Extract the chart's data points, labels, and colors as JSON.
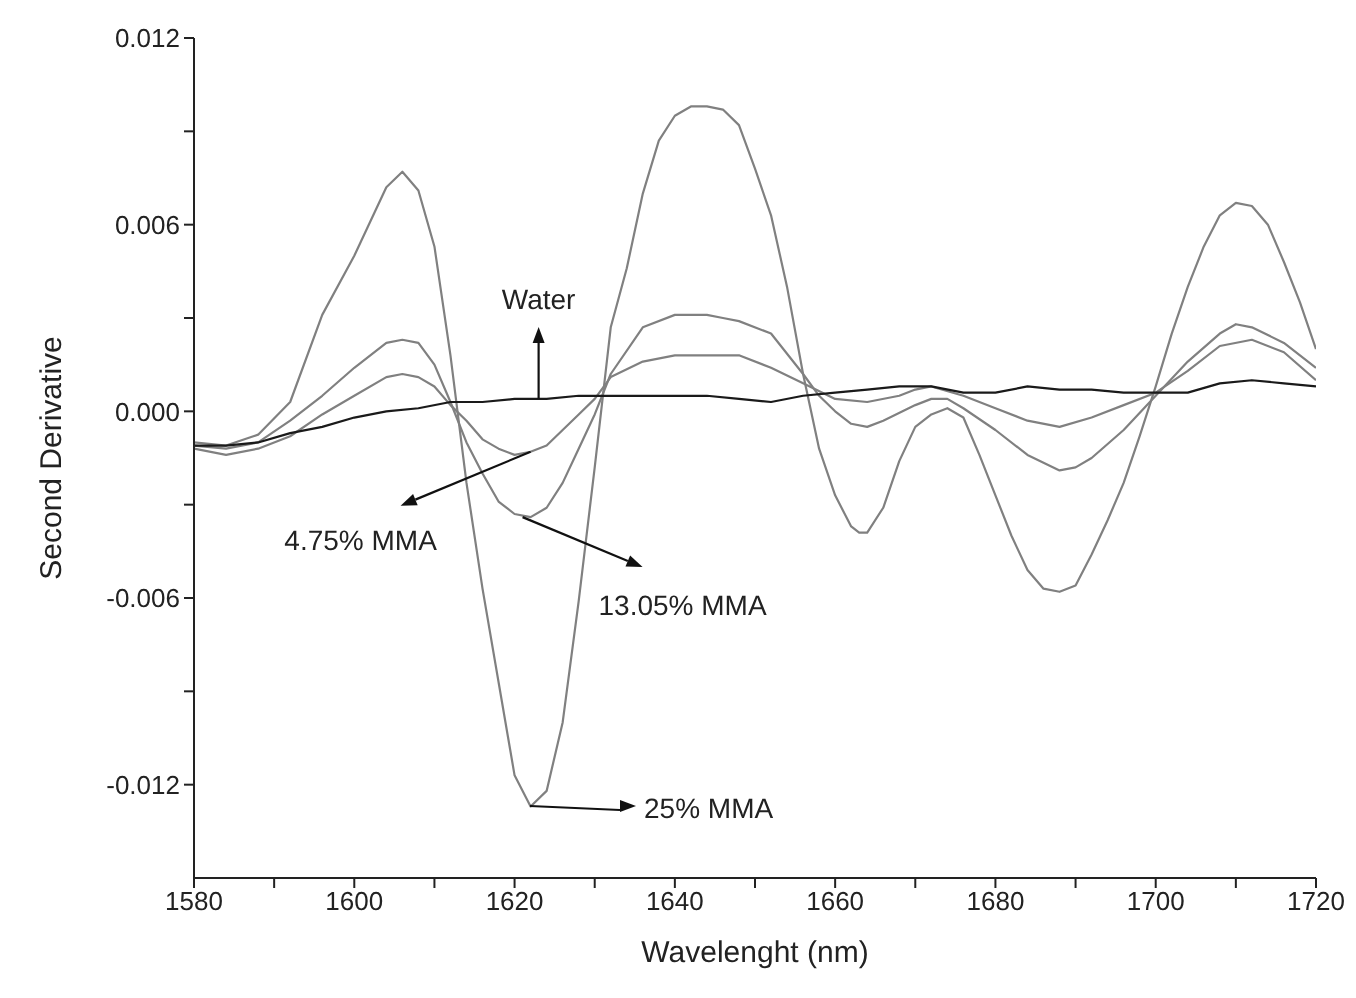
{
  "chart_data": {
    "type": "line",
    "xlabel": "Wavelenght (nm)",
    "ylabel": "Second Derivative",
    "xlim": [
      1580,
      1720
    ],
    "ylim": [
      -0.015,
      0.012
    ],
    "xticks": [
      1580,
      {
        "value": 1590,
        "label": null
      },
      1600,
      {
        "value": 1610,
        "label": null
      },
      1620,
      {
        "value": 1630,
        "label": null
      },
      1640,
      {
        "value": 1650,
        "label": null
      },
      1660,
      {
        "value": 1670,
        "label": null
      },
      1680,
      {
        "value": 1690,
        "label": null
      },
      1700,
      {
        "value": 1710,
        "label": null
      },
      1720
    ],
    "yticks": [
      -0.012,
      {
        "value": -0.009,
        "label": null
      },
      -0.006,
      {
        "value": -0.003,
        "label": null
      },
      {
        "value": 0,
        "label": "0.000"
      },
      {
        "value": 0.003,
        "label": null
      },
      0.006,
      {
        "value": 0.009,
        "label": null
      },
      0.012
    ],
    "marker": "none",
    "line_style": "solid",
    "series": [
      {
        "color": "#808080",
        "x": [
          1580,
          1584,
          1588,
          1592,
          1596,
          1600,
          1604,
          1606,
          1608,
          1610,
          1612,
          1614,
          1616,
          1618,
          1620,
          1622,
          1624,
          1626,
          1628,
          1630,
          1632,
          1634,
          1636,
          1638,
          1640,
          1642,
          1644,
          1646,
          1648,
          1650,
          1652,
          1654,
          1656,
          1658,
          1660,
          1662,
          1663,
          1664,
          1666,
          1668,
          1670,
          1672,
          1674,
          1676,
          1678,
          1680,
          1682,
          1684,
          1686,
          1688,
          1690,
          1692,
          1694,
          1696,
          1698,
          1700,
          1702,
          1704,
          1706,
          1708,
          1710,
          1712,
          1714,
          1716,
          1718,
          1720
        ],
        "values": [
          -0.001,
          -0.0011,
          -0.00075,
          0.0003,
          0.0031,
          0.005,
          0.0072,
          0.0077,
          0.0071,
          0.0053,
          0.0018,
          -0.0023,
          -0.0057,
          -0.0087,
          -0.0117,
          -0.0127,
          -0.0122,
          -0.01,
          -0.0061,
          -0.0018,
          0.0027,
          0.0046,
          0.007,
          0.0087,
          0.0095,
          0.0098,
          0.0098,
          0.0097,
          0.0092,
          0.0078,
          0.0063,
          0.004,
          0.0012,
          -0.0012,
          -0.0027,
          -0.0037,
          -0.0039,
          -0.0039,
          -0.0031,
          -0.0016,
          -0.0005,
          -0.0001,
          0.0001,
          -0.0002,
          -0.0014,
          -0.0027,
          -0.004,
          -0.0051,
          -0.0057,
          -0.0058,
          -0.0056,
          -0.0046,
          -0.0035,
          -0.0023,
          -0.0008,
          0.0008,
          0.0025,
          0.004,
          0.0053,
          0.0063,
          0.0067,
          0.0066,
          0.006,
          0.0048,
          0.0035,
          0.002
        ]
      },
      {
        "color": "#808080",
        "x": [
          1580,
          1584,
          1588,
          1592,
          1596,
          1600,
          1604,
          1606,
          1608,
          1610,
          1612,
          1614,
          1616,
          1618,
          1620,
          1622,
          1624,
          1626,
          1628,
          1630,
          1632,
          1636,
          1640,
          1644,
          1646,
          1648,
          1652,
          1656,
          1658,
          1660,
          1662,
          1664,
          1666,
          1670,
          1672,
          1674,
          1676,
          1680,
          1684,
          1688,
          1690,
          1692,
          1696,
          1700,
          1704,
          1708,
          1710,
          1712,
          1716,
          1720
        ],
        "values": [
          -0.0011,
          -0.0012,
          -0.001,
          -0.0003,
          0.0005,
          0.0014,
          0.0022,
          0.0023,
          0.0022,
          0.0015,
          0.0003,
          -0.001,
          -0.002,
          -0.0029,
          -0.0033,
          -0.0034,
          -0.0031,
          -0.0023,
          -0.0012,
          -0.0001,
          0.0012,
          0.0027,
          0.0031,
          0.0031,
          0.003,
          0.0029,
          0.0025,
          0.0012,
          0.0005,
          0,
          -0.0004,
          -0.0005,
          -0.0003,
          0.0002,
          0.0004,
          0.0004,
          0.0001,
          -0.0006,
          -0.0014,
          -0.0019,
          -0.0018,
          -0.0015,
          -0.0006,
          0.0005,
          0.0016,
          0.0025,
          0.0028,
          0.0027,
          0.0022,
          0.0014
        ]
      },
      {
        "color": "#808080",
        "x": [
          1580,
          1584,
          1588,
          1592,
          1596,
          1600,
          1604,
          1606,
          1608,
          1610,
          1612,
          1614,
          1616,
          1618,
          1620,
          1622,
          1624,
          1626,
          1628,
          1630,
          1632,
          1636,
          1640,
          1644,
          1648,
          1652,
          1656,
          1660,
          1664,
          1668,
          1670,
          1672,
          1676,
          1680,
          1684,
          1688,
          1692,
          1696,
          1700,
          1704,
          1708,
          1712,
          1716,
          1720
        ],
        "values": [
          -0.0012,
          -0.0014,
          -0.0012,
          -0.0008,
          -0.0001,
          0.0005,
          0.0011,
          0.0012,
          0.0011,
          0.0008,
          0.0002,
          -0.0003,
          -0.0009,
          -0.0012,
          -0.0014,
          -0.0013,
          -0.0011,
          -0.0006,
          -0.0001,
          0.0004,
          0.0011,
          0.0016,
          0.0018,
          0.0018,
          0.0018,
          0.0014,
          0.0009,
          0.0004,
          0.0003,
          0.0005,
          0.0007,
          0.0008,
          0.0005,
          0.0001,
          -0.0003,
          -0.0005,
          -0.0002,
          0.0002,
          0.0006,
          0.0013,
          0.0021,
          0.0023,
          0.0019,
          0.001
        ]
      },
      {
        "color": "#1a1a1a",
        "x": [
          1580,
          1584,
          1588,
          1592,
          1596,
          1600,
          1604,
          1608,
          1612,
          1616,
          1620,
          1624,
          1628,
          1632,
          1636,
          1640,
          1644,
          1648,
          1652,
          1656,
          1660,
          1664,
          1668,
          1672,
          1676,
          1680,
          1684,
          1688,
          1692,
          1696,
          1700,
          1704,
          1708,
          1712,
          1716,
          1720
        ],
        "values": [
          -0.0011,
          -0.0011,
          -0.001,
          -0.0007,
          -0.0005,
          -0.0002,
          0,
          0.0001,
          0.0003,
          0.0003,
          0.0004,
          0.0004,
          0.0005,
          0.0005,
          0.0005,
          0.0005,
          0.0005,
          0.0004,
          0.0003,
          0.0005,
          0.0006,
          0.0007,
          0.0008,
          0.0008,
          0.0006,
          0.0006,
          0.0008,
          0.0007,
          0.0007,
          0.0006,
          0.0006,
          0.0006,
          0.0009,
          0.001,
          0.0009,
          0.0008
        ]
      }
    ],
    "annotations": [
      {
        "text": "Water",
        "x": 1623,
        "y": 0.0004
      },
      {
        "text": "4.75% MMA",
        "x": 1622,
        "y": -0.0013
      },
      {
        "text": "13.05% MMA",
        "x": 1621,
        "y": -0.0034
      },
      "25% MMA"
    ]
  }
}
